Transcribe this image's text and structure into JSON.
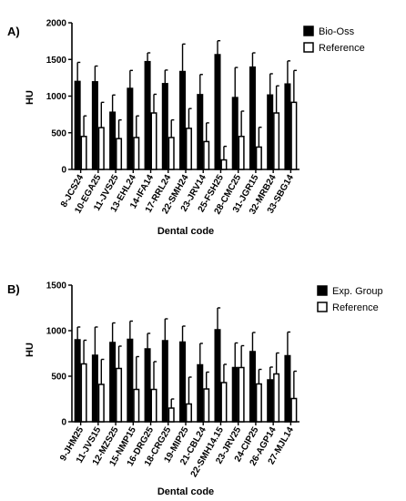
{
  "colors": {
    "filled": "#000000",
    "open": "#ffffff",
    "stroke": "#000000"
  },
  "panels": [
    {
      "letter": "A)",
      "legend": [
        "Bio-Oss",
        "Reference"
      ],
      "ylabel": "HU",
      "xlabel": "Dental code",
      "yticks": [
        "0",
        "500",
        "1000",
        "1500",
        "2000"
      ]
    },
    {
      "letter": "B)",
      "legend": [
        "Exp. Group",
        "Reference"
      ],
      "ylabel": "HU",
      "xlabel": "Dental code",
      "yticks": [
        "0",
        "500",
        "1000",
        "1500"
      ]
    }
  ],
  "chart_data": [
    {
      "type": "bar",
      "title": "",
      "xlabel": "Dental code",
      "ylabel": "HU",
      "ylim": [
        0,
        2000
      ],
      "yticks": [
        0,
        500,
        1000,
        1500,
        2000
      ],
      "legend_position": "top-right",
      "error_bars": true,
      "categories": [
        "8-JCS24",
        "10-EGA25",
        "11-JVS25",
        "13-EHL24",
        "14-IFA14",
        "17-RRL24",
        "22-SMH24",
        "23-JRV14",
        "25-FSH25",
        "28-CMC25",
        "31-JGR15",
        "32-MRB24",
        "33-SBG14"
      ],
      "series": [
        {
          "name": "Bio-Oss",
          "fill": "filled",
          "values": [
            1200,
            1195,
            780,
            1105,
            1470,
            1170,
            1335,
            1020,
            1565,
            980,
            1395,
            1015,
            1165
          ],
          "errors": [
            260,
            215,
            235,
            245,
            120,
            185,
            375,
            275,
            190,
            410,
            195,
            290,
            315
          ]
        },
        {
          "name": "Reference",
          "fill": "open",
          "values": [
            450,
            570,
            420,
            435,
            770,
            435,
            560,
            380,
            130,
            450,
            305,
            770,
            915
          ],
          "errors": [
            280,
            345,
            255,
            295,
            255,
            240,
            270,
            255,
            185,
            345,
            270,
            370,
            435
          ]
        }
      ]
    },
    {
      "type": "bar",
      "title": "",
      "xlabel": "Dental code",
      "ylabel": "HU",
      "ylim": [
        0,
        1500
      ],
      "yticks": [
        0,
        500,
        1000,
        1500
      ],
      "legend_position": "top-right",
      "error_bars": true,
      "categories": [
        "9-JHM25",
        "11-JVS15",
        "12-MZS25",
        "15-NMP15",
        "16-DRG25",
        "18-CRG25",
        "19-MIP25",
        "21-CBL24",
        "22-SMH14.15",
        "23-JRV25",
        "24-CIP25",
        "26-AGP14",
        "27-MJL14"
      ],
      "series": [
        {
          "name": "Exp. Group",
          "fill": "filled",
          "values": [
            900,
            730,
            870,
            905,
            800,
            890,
            875,
            625,
            1010,
            595,
            770,
            460,
            725
          ],
          "errors": [
            140,
            310,
            215,
            200,
            170,
            240,
            175,
            235,
            240,
            270,
            210,
            140,
            260
          ]
        },
        {
          "name": "Reference",
          "fill": "open",
          "values": [
            635,
            410,
            585,
            355,
            355,
            150,
            195,
            360,
            430,
            595,
            415,
            525,
            255
          ],
          "errors": [
            260,
            275,
            245,
            360,
            305,
            100,
            295,
            185,
            200,
            240,
            160,
            230,
            300
          ]
        }
      ]
    }
  ]
}
